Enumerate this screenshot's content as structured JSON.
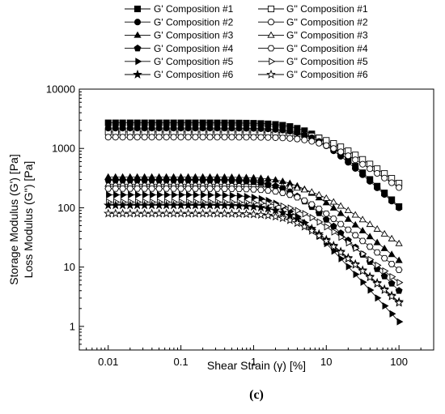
{
  "chart_data": {
    "type": "line",
    "xlabel": "Shear Strain (γ) [%]",
    "ylabel_lines": [
      "Storage Modulus (G') [Pa]",
      "Loss Modulus (G'') [Pa]"
    ],
    "x_scale": "log",
    "y_scale": "log",
    "xlim": [
      0.004,
      300
    ],
    "ylim": [
      0.4,
      10000
    ],
    "x_ticks": [
      0.01,
      0.1,
      1,
      10,
      100
    ],
    "x_tick_labels": [
      "0.01",
      "0.1",
      "1",
      "10",
      "100"
    ],
    "y_ticks": [
      1,
      10,
      100,
      1000,
      10000
    ],
    "y_tick_labels": [
      "1",
      "10",
      "100",
      "1000",
      "10000"
    ],
    "grid": false,
    "legend_position": "top",
    "caption": "(c)",
    "x": [
      0.01,
      0.0126,
      0.0158,
      0.02,
      0.0251,
      0.0316,
      0.0398,
      0.0501,
      0.0631,
      0.0794,
      0.1,
      0.126,
      0.158,
      0.2,
      0.251,
      0.316,
      0.398,
      0.501,
      0.631,
      0.794,
      1,
      1.26,
      1.58,
      2,
      2.51,
      3.16,
      3.98,
      5.01,
      6.31,
      7.94,
      10,
      12.6,
      15.8,
      20,
      25.1,
      31.6,
      39.8,
      50.1,
      63.1,
      79.4,
      100
    ],
    "series": [
      {
        "name": "G' Composition #1",
        "marker": "square",
        "filled": true,
        "plateau": 2700,
        "onset": 6.0,
        "end": 105
      },
      {
        "name": "G'' Composition #1",
        "marker": "square",
        "filled": false,
        "plateau": 1900,
        "onset": 9.0,
        "end": 260
      },
      {
        "name": "G' Composition #2",
        "marker": "circle",
        "filled": true,
        "plateau": 2200,
        "onset": 6.5,
        "end": 100
      },
      {
        "name": "G'' Composition #2",
        "marker": "circle",
        "filled": false,
        "plateau": 1550,
        "onset": 9.0,
        "end": 220
      },
      {
        "name": "G' Composition #3",
        "marker": "triangle-up",
        "filled": true,
        "plateau": 330,
        "onset": 4.0,
        "end": 13
      },
      {
        "name": "G'' Composition #3",
        "marker": "triangle-up",
        "filled": false,
        "plateau": 250,
        "onset": 6.0,
        "end": 25
      },
      {
        "name": "G' Composition #4",
        "marker": "pentagon",
        "filled": true,
        "plateau": 290,
        "onset": 3.0,
        "end": 4
      },
      {
        "name": "G'' Composition #4",
        "marker": "hexagon",
        "filled": false,
        "plateau": 210,
        "onset": 4.0,
        "end": 9
      },
      {
        "name": "G' Composition #5",
        "marker": "triangle-right",
        "filled": true,
        "plateau": 165,
        "onset": 2.5,
        "end": 1.2
      },
      {
        "name": "G'' Composition #5",
        "marker": "triangle-right",
        "filled": false,
        "plateau": 125,
        "onset": 4.0,
        "end": 5.5
      },
      {
        "name": "G' Composition #6",
        "marker": "star",
        "filled": true,
        "plateau": 110,
        "onset": 3.0,
        "end": 2.6
      },
      {
        "name": "G'' Composition #6",
        "marker": "star",
        "filled": false,
        "plateau": 80,
        "onset": 4.0,
        "end": 2.5
      }
    ]
  }
}
